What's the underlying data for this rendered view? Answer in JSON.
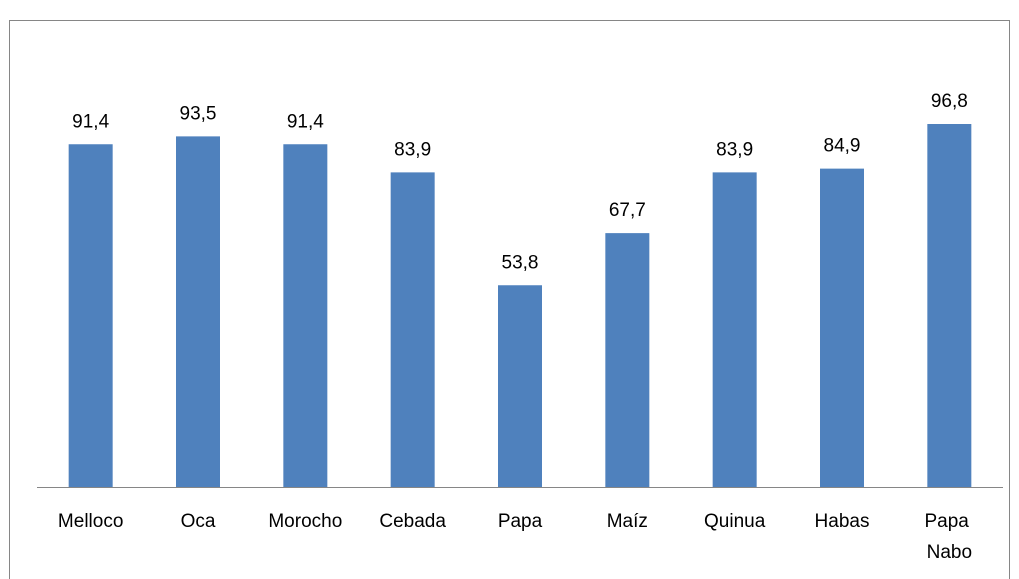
{
  "chart_data": {
    "type": "bar",
    "categories": [
      "Melloco",
      "Oca",
      "Morocho",
      "Cebada",
      "Papa",
      "Maíz",
      "Quinua",
      "Habas",
      "Papa Nabo"
    ],
    "values": [
      91.4,
      93.5,
      91.4,
      83.9,
      53.8,
      67.7,
      83.9,
      84.9,
      96.8
    ],
    "value_labels": [
      "91,4",
      "93,5",
      "91,4",
      "83,9",
      "53,8",
      "67,7",
      "83,9",
      "84,9",
      "96,8"
    ],
    "color": "#4f81bd",
    "ylim": [
      0,
      100
    ]
  }
}
